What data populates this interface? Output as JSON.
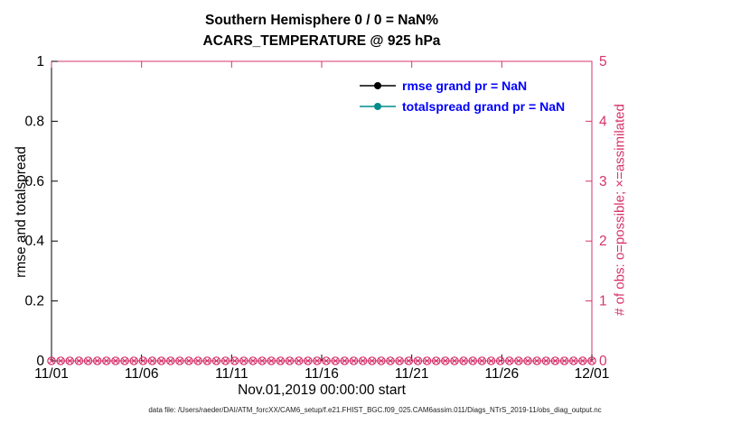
{
  "chart_data": {
    "type": "line",
    "title": "Southern Hemisphere 0 / 0 = NaN%",
    "subtitle": "ACARS_TEMPERATURE @ 925 hPa",
    "xlabel": "Nov.01,2019 00:00:00 start",
    "ylabel_left": "rmse and totalspread",
    "ylabel_right": "# of obs: o=possible; ×=assimilated",
    "x_tick_labels": [
      "11/01",
      "11/06",
      "11/11",
      "11/16",
      "11/21",
      "11/26",
      "12/01"
    ],
    "y_left_tick_labels": [
      "0",
      "0.2",
      "0.4",
      "0.6",
      "0.8",
      "1"
    ],
    "y_right_tick_labels": [
      "0",
      "1",
      "2",
      "3",
      "4",
      "5"
    ],
    "ylim_left": [
      0,
      1
    ],
    "ylim_right": [
      0,
      5
    ],
    "grid": false,
    "legend_position": "upper-center-inside",
    "series": [
      {
        "name": "rmse grand pr = NaN",
        "color": "#000000",
        "values": null
      },
      {
        "name": "totalspread grand pr = NaN",
        "color": "#008b8b",
        "values": null
      }
    ],
    "observations": {
      "possible_total": 0,
      "assimilated_total": 0,
      "possible_value_y": 0,
      "assimilated_value_y": 0,
      "marker_count": 60
    },
    "footer": "data file: /Users/raeder/DAI/ATM_forcXX/CAM6_setup/f.e21.FHIST_BGC.f09_025.CAM6assim.011/Diags_NTrS_2019-11/obs_diag_output.nc",
    "colors": {
      "axis_accent": "#d6336c",
      "legend_text": "#0000ff",
      "axis_text": "#000000",
      "background": "#ffffff"
    }
  }
}
